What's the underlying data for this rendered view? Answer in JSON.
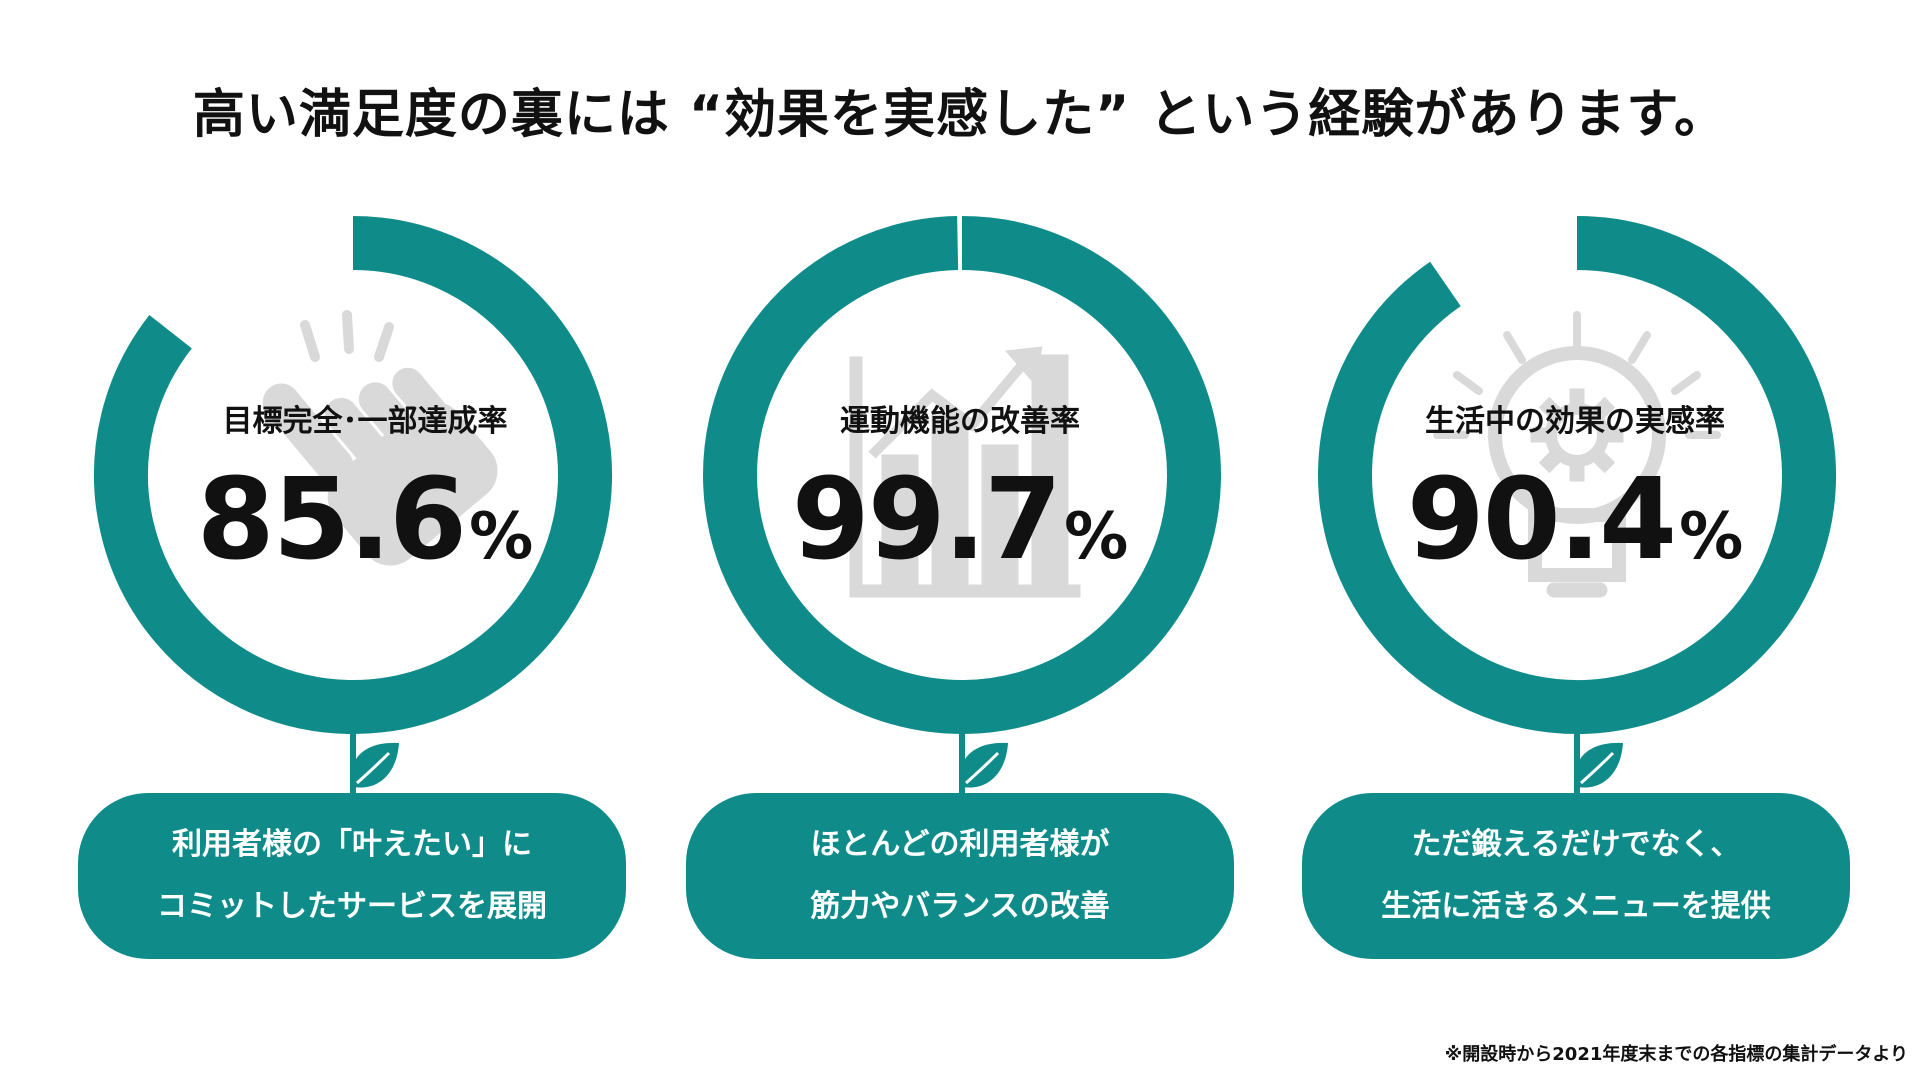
{
  "title": "高い満足度の裏には “効果を実感した” という経験があります。",
  "accent_color": "#0f8c8a",
  "icon_color": "#d9d9d9",
  "chart_data": {
    "type": "pie",
    "title": "高い満足度の裏には “効果を実感した” という経験があります。",
    "unit": "%",
    "items": [
      {
        "label": "目標完全･一部達成率",
        "value": 85.6,
        "value_text": "85.6",
        "unit": "%",
        "icon": "hand-tap-icon",
        "caption": [
          "利用者様の「叶えたい」に",
          "コミットしたサービスを展開"
        ]
      },
      {
        "label": "運動機能の改善率",
        "value": 99.7,
        "value_text": "99.7",
        "unit": "%",
        "icon": "growth-chart-icon",
        "caption": [
          "ほとんどの利用者様が",
          "筋力やバランスの改善"
        ]
      },
      {
        "label": "生活中の効果の実感率",
        "value": 90.4,
        "value_text": "90.4",
        "unit": "%",
        "icon": "lightbulb-gear-icon",
        "caption": [
          "ただ鍛えるだけでなく、",
          "生活に活きるメニューを提供"
        ]
      }
    ]
  },
  "footnote": "※開設時から2021年度末までの各指標の集計データより"
}
